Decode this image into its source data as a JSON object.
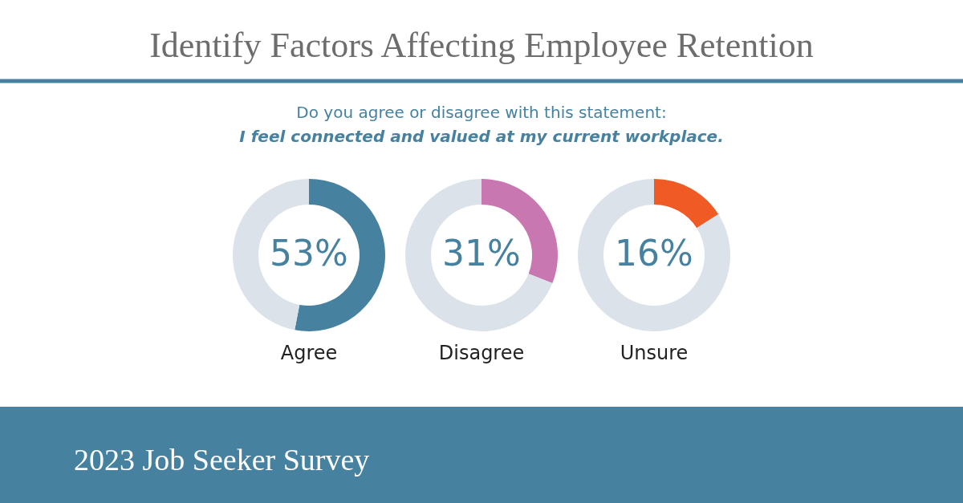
{
  "chart_data": [
    {
      "type": "donut",
      "title": "Identify Factors Affecting Employee Retention",
      "subtitle": "Do you agree or disagree with this statement:",
      "annotations": [
        "I feel connected and valued at my current workplace.",
        "2023 Job Seeker Survey"
      ],
      "xlabel": "Agree",
      "categories": [
        null,
        null
      ],
      "values": [
        53,
        47
      ],
      "colors": [
        "#4682a0",
        "#dce2ea"
      ],
      "value_labels": [
        "53%",
        null
      ]
    },
    {
      "type": "donut",
      "xlabel": "Disagree",
      "categories": [
        null,
        null
      ],
      "values": [
        31,
        69
      ],
      "colors": [
        "#c977b0",
        "#dce2ea"
      ],
      "value_labels": [
        "31%",
        null
      ]
    },
    {
      "type": "donut",
      "xlabel": "Unsure",
      "categories": [
        null,
        null
      ],
      "values": [
        16,
        84
      ],
      "colors": [
        "#f05a24",
        "#dce2ea"
      ],
      "value_labels": [
        "16%",
        null
      ]
    }
  ]
}
